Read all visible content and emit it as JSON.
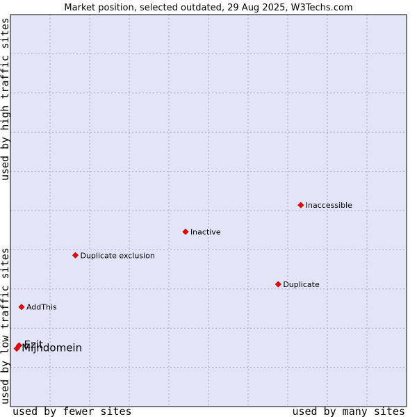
{
  "chart_data": {
    "type": "scatter",
    "title": "Market position, selected outdated, 29 Aug 2025, W3Techs.com",
    "xlabel_left": "used by fewer sites",
    "xlabel_right": "used by many sites",
    "ylabel_bottom": "used by low traffic sites",
    "ylabel_top": "used by high traffic sites",
    "xlim": [
      0,
      100
    ],
    "ylim": [
      0,
      100
    ],
    "grid": true,
    "colors": {
      "plot_background": "#e2e4f8",
      "grid": "#a8a8c0",
      "marker": "#ff0000",
      "marker_edge": "#b00000"
    },
    "points": [
      {
        "label": "Inaccessible",
        "x": 73.3,
        "y": 51.4,
        "label_size": "small"
      },
      {
        "label": "Inactive",
        "x": 44.2,
        "y": 44.6,
        "label_size": "small"
      },
      {
        "label": "Duplicate exclusion",
        "x": 16.4,
        "y": 38.6,
        "label_size": "small"
      },
      {
        "label": "Duplicate",
        "x": 67.6,
        "y": 31.2,
        "label_size": "small"
      },
      {
        "label": "AddThis",
        "x": 2.8,
        "y": 25.4,
        "label_size": "small"
      },
      {
        "label": "Ezit",
        "x": 2.2,
        "y": 15.6,
        "label_size": "large"
      },
      {
        "label": "Mijndomein",
        "x": 1.6,
        "y": 14.8,
        "label_size": "large"
      }
    ]
  }
}
